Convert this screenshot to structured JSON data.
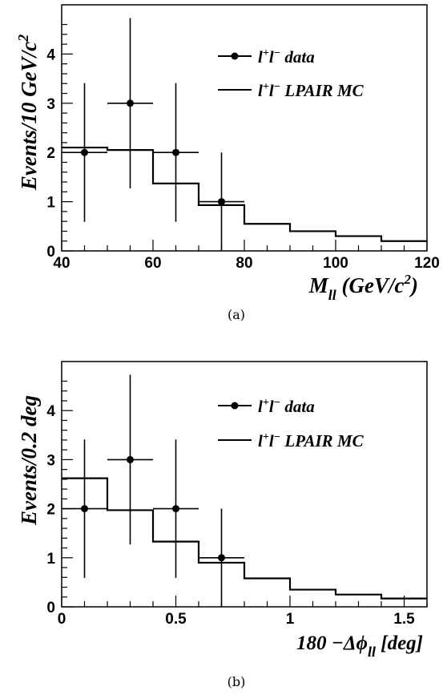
{
  "chart_data": [
    {
      "type": "line",
      "panel_caption": "(a)",
      "ylabel": "Events/10 GeV/c²",
      "xlabel_main": "M",
      "xlabel_sub": "ll",
      "xlabel_unit": "(GeV/c",
      "xlabel_unit_sup": "2",
      "xlabel_unit_end": ")",
      "xlim": [
        40,
        120
      ],
      "ylim": [
        0,
        5
      ],
      "xticks": [
        "40",
        "60",
        "80",
        "100",
        "120"
      ],
      "yticks": [
        "0",
        "1",
        "2",
        "3",
        "4"
      ],
      "legend": [
        {
          "name": "l⁺l⁻ data",
          "style": "marker"
        },
        {
          "name": "l⁺l⁻ LPAIR MC",
          "style": "line"
        }
      ],
      "series": [
        {
          "name": "l⁺l⁻ data",
          "points": [
            {
              "x": 45,
              "y": 2,
              "xerr": 5,
              "yerr_low": 1.41,
              "yerr_high": 1.41
            },
            {
              "x": 55,
              "y": 3,
              "xerr": 5,
              "yerr_low": 1.73,
              "yerr_high": 1.73
            },
            {
              "x": 65,
              "y": 2,
              "xerr": 5,
              "yerr_low": 1.41,
              "yerr_high": 1.41
            },
            {
              "x": 75,
              "y": 1,
              "xerr": 5,
              "yerr_low": 1.0,
              "yerr_high": 1.0
            }
          ]
        },
        {
          "name": "l⁺l⁻ LPAIR MC",
          "bin_edges": [
            40,
            50,
            60,
            70,
            80,
            90,
            100,
            110,
            120
          ],
          "values": [
            2.1,
            2.05,
            1.37,
            0.93,
            0.55,
            0.4,
            0.3,
            0.2
          ]
        }
      ]
    },
    {
      "type": "line",
      "panel_caption": "(b)",
      "ylabel": "Events/0.2 deg",
      "xlabel_main": "180 −Δϕ",
      "xlabel_sub": "ll",
      "xlabel_unit": "[deg]",
      "xlabel_unit_sup": "",
      "xlabel_unit_end": "",
      "xlim": [
        0,
        1.6
      ],
      "ylim": [
        0,
        5
      ],
      "xticks": [
        "0",
        "0.5",
        "1",
        "1.5"
      ],
      "yticks": [
        "0",
        "1",
        "2",
        "3",
        "4"
      ],
      "legend": [
        {
          "name": "l⁺l⁻ data",
          "style": "marker"
        },
        {
          "name": "l⁺l⁻ LPAIR MC",
          "style": "line"
        }
      ],
      "series": [
        {
          "name": "l⁺l⁻ data",
          "points": [
            {
              "x": 0.1,
              "y": 2,
              "xerr": 0.1,
              "yerr_low": 1.41,
              "yerr_high": 1.41
            },
            {
              "x": 0.3,
              "y": 3,
              "xerr": 0.1,
              "yerr_low": 1.73,
              "yerr_high": 1.73
            },
            {
              "x": 0.5,
              "y": 2,
              "xerr": 0.1,
              "yerr_low": 1.41,
              "yerr_high": 1.41
            },
            {
              "x": 0.7,
              "y": 1,
              "xerr": 0.1,
              "yerr_low": 1.0,
              "yerr_high": 1.0
            }
          ]
        },
        {
          "name": "l⁺l⁻ LPAIR MC",
          "bin_edges": [
            0,
            0.2,
            0.4,
            0.6,
            0.8,
            1.0,
            1.2,
            1.4,
            1.6
          ],
          "values": [
            2.62,
            1.97,
            1.33,
            0.9,
            0.58,
            0.35,
            0.25,
            0.17
          ]
        }
      ]
    }
  ]
}
